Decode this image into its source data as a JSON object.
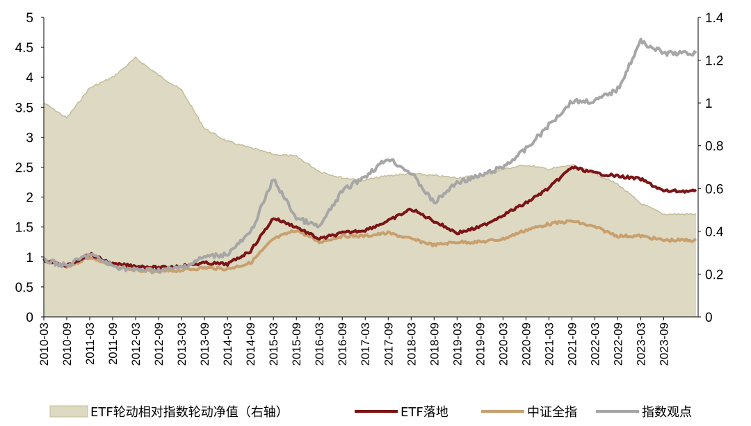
{
  "chart_data": {
    "type": "line",
    "x": [
      "2010-03",
      "2010-09",
      "2011-03",
      "2011-09",
      "2012-03",
      "2012-09",
      "2013-03",
      "2013-09",
      "2014-03",
      "2014-09",
      "2015-03",
      "2015-09",
      "2016-03",
      "2016-09",
      "2017-03",
      "2017-09",
      "2018-03",
      "2018-09",
      "2019-03",
      "2019-09",
      "2020-03",
      "2020-09",
      "2021-03",
      "2021-09",
      "2022-03",
      "2022-09",
      "2023-03",
      "2023-09"
    ],
    "x_end": "2024-01",
    "ylim_left": [
      0,
      5
    ],
    "yticks_left": [
      "0",
      "0.5",
      "1",
      "1.5",
      "2",
      "2.5",
      "3",
      "3.5",
      "4",
      "4.5",
      "5"
    ],
    "ylim_right": [
      0,
      1.4
    ],
    "yticks_right": [
      "0",
      "0.2",
      "0.4",
      "0.6",
      "0.8",
      "1",
      "1.2",
      "1.4"
    ],
    "grid": false,
    "legend_position": "bottom",
    "series": [
      {
        "name": "ETF轮动相对指数轮动净值（右轴）",
        "type": "area",
        "axis": "right",
        "color": "#ddd9c3",
        "edge_color": "#c4bd97",
        "values": [
          1.0,
          0.93,
          1.07,
          1.12,
          1.21,
          1.13,
          1.06,
          0.88,
          0.82,
          0.79,
          0.76,
          0.75,
          0.68,
          0.65,
          0.64,
          0.66,
          0.67,
          0.66,
          0.65,
          0.66,
          0.69,
          0.71,
          0.69,
          0.71,
          0.67,
          0.62,
          0.53,
          0.48
        ]
      },
      {
        "name": "ETF落地",
        "type": "line",
        "axis": "left",
        "color": "#7b1416",
        "values": [
          0.95,
          0.85,
          1.05,
          0.88,
          0.85,
          0.82,
          0.85,
          0.9,
          0.88,
          1.1,
          1.65,
          1.5,
          1.3,
          1.4,
          1.45,
          1.6,
          1.8,
          1.6,
          1.4,
          1.5,
          1.7,
          1.9,
          2.15,
          2.5,
          2.4,
          2.35,
          2.3,
          2.1
        ]
      },
      {
        "name": "中证全指",
        "type": "line",
        "axis": "left",
        "color": "#c8a06e",
        "values": [
          0.95,
          0.83,
          1.0,
          0.85,
          0.78,
          0.75,
          0.78,
          0.82,
          0.8,
          0.9,
          1.3,
          1.45,
          1.25,
          1.35,
          1.35,
          1.4,
          1.3,
          1.2,
          1.25,
          1.25,
          1.3,
          1.45,
          1.55,
          1.6,
          1.5,
          1.35,
          1.35,
          1.28
        ]
      },
      {
        "name": "指数观点",
        "type": "line",
        "axis": "left",
        "color": "#a6a6a6",
        "values": [
          0.95,
          0.85,
          1.05,
          0.85,
          0.78,
          0.78,
          0.82,
          1.0,
          1.05,
          1.4,
          2.3,
          1.65,
          1.5,
          2.1,
          2.35,
          2.65,
          2.4,
          1.9,
          2.25,
          2.35,
          2.5,
          2.8,
          3.2,
          3.6,
          3.6,
          3.8,
          4.6,
          4.4
        ]
      }
    ]
  }
}
